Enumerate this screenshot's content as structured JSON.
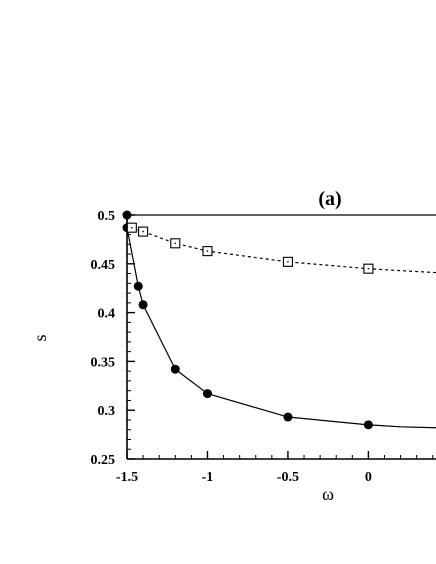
{
  "chart_data": {
    "type": "line",
    "panel_label": "(a)",
    "xlabel": "ω",
    "ylabel": "s",
    "xlim": [
      -1.5,
      0.42
    ],
    "ylim": [
      0.25,
      0.5
    ],
    "x_ticks": [
      -1.5,
      -1,
      -0.5,
      0
    ],
    "x_tick_labels": [
      "-1.5",
      "-1",
      "-0.5",
      "0"
    ],
    "y_ticks": [
      0.25,
      0.3,
      0.35,
      0.4,
      0.45,
      0.5
    ],
    "y_tick_labels": [
      "0.25",
      "0.3",
      "0.35",
      "0.4",
      "0.45",
      "0.5"
    ],
    "grid": false,
    "series": [
      {
        "marker": "filled-circle",
        "line_style": "solid",
        "color": "#000000",
        "points": [
          {
            "x": -1.5,
            "y": 0.5
          },
          {
            "x": -1.5,
            "y": 0.487
          },
          {
            "x": -1.43,
            "y": 0.427
          },
          {
            "x": -1.4,
            "y": 0.408
          },
          {
            "x": -1.2,
            "y": 0.342
          },
          {
            "x": -1.0,
            "y": 0.317
          },
          {
            "x": -0.5,
            "y": 0.293
          },
          {
            "x": 0.0,
            "y": 0.285
          }
        ],
        "tail": [
          {
            "x": 0.0,
            "y": 0.285
          },
          {
            "x": 0.2,
            "y": 0.283
          },
          {
            "x": 0.42,
            "y": 0.282
          }
        ]
      },
      {
        "marker": "open-square",
        "line_style": "dotted",
        "color": "#000000",
        "points": [
          {
            "x": -1.47,
            "y": 0.487
          },
          {
            "x": -1.4,
            "y": 0.483
          },
          {
            "x": -1.2,
            "y": 0.471
          },
          {
            "x": -1.0,
            "y": 0.463
          },
          {
            "x": -0.5,
            "y": 0.452
          },
          {
            "x": 0.0,
            "y": 0.445
          }
        ],
        "tail": [
          {
            "x": 0.0,
            "y": 0.445
          },
          {
            "x": 0.2,
            "y": 0.443
          },
          {
            "x": 0.42,
            "y": 0.441
          }
        ]
      }
    ]
  }
}
